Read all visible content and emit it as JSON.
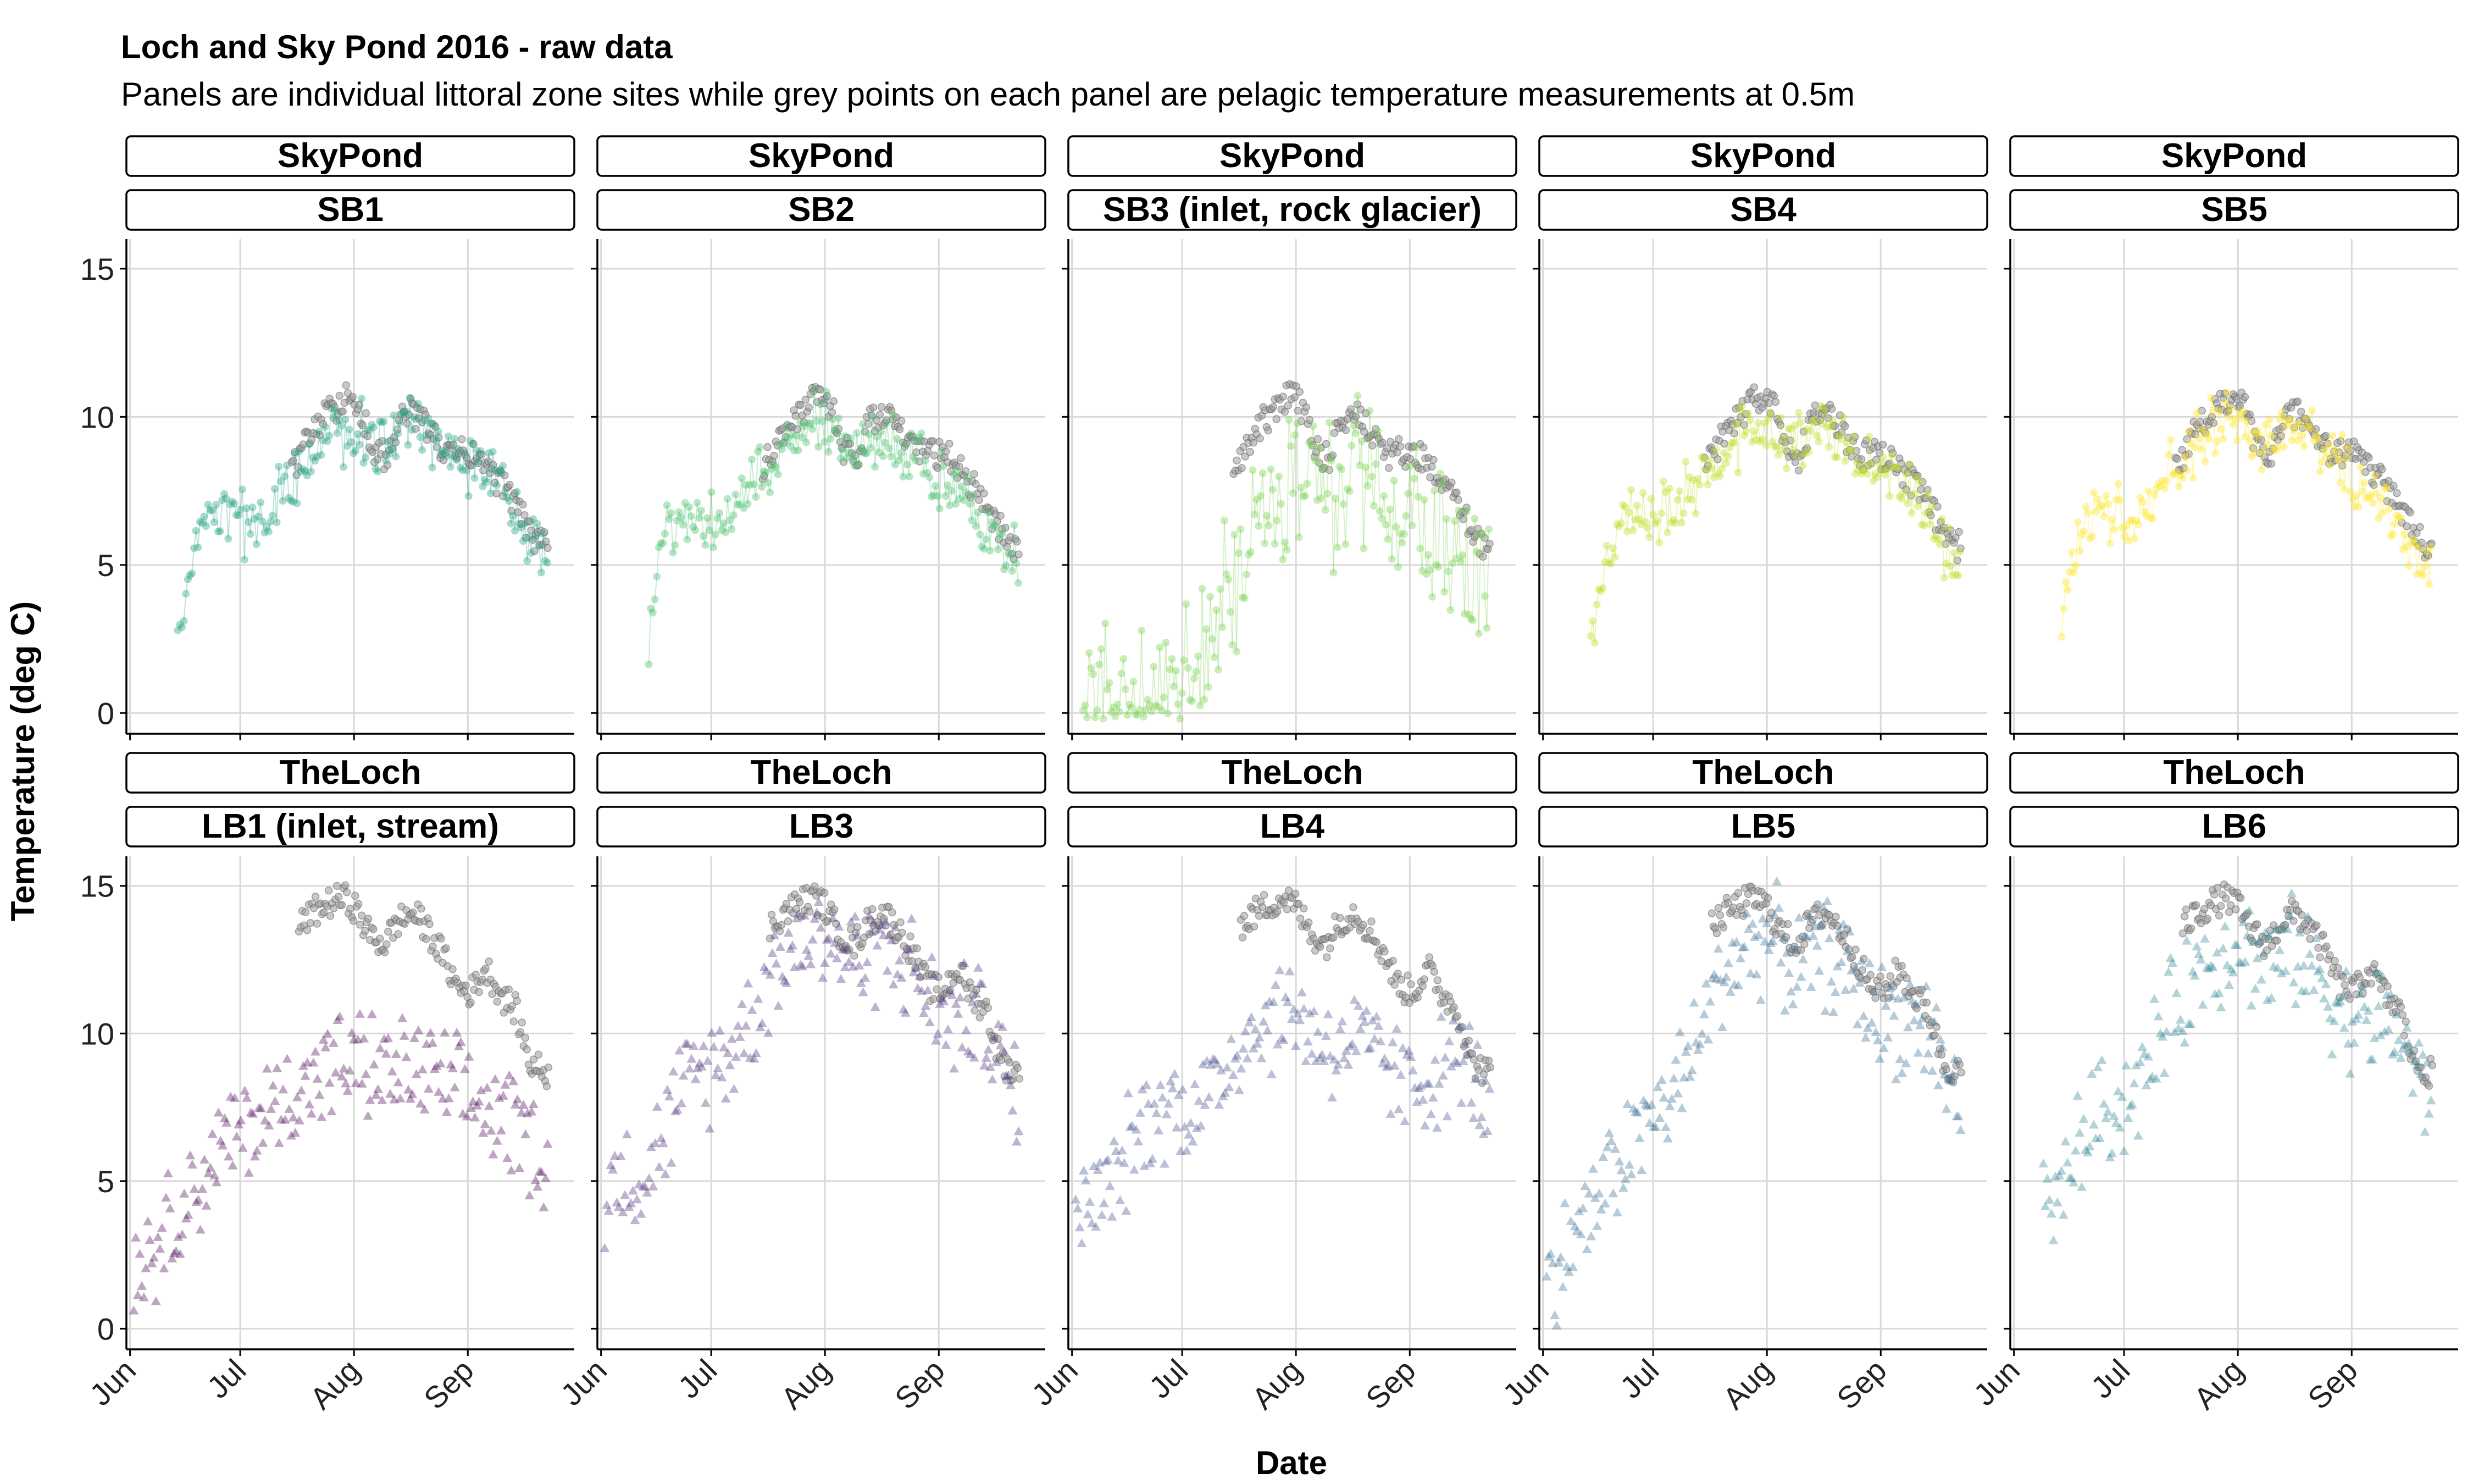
{
  "chart_data": {
    "type": "scatter",
    "title": "Loch and Sky Pond 2016 - raw data",
    "subtitle": "Panels are individual littoral zone sites while grey points on each panel are pelagic temperature measurements at 0.5m",
    "xlabel": "Date",
    "ylabel": "Temperature (deg C)",
    "x_ticks": [
      "Jun",
      "Jul",
      "Aug",
      "Sep"
    ],
    "x_tick_dates": [
      "2016-06-01",
      "2016-07-01",
      "2016-08-01",
      "2016-09-01"
    ],
    "xlim": [
      "2016-05-31",
      "2016-09-30"
    ],
    "y_ticks": [
      0,
      5,
      10,
      15
    ],
    "ylim": [
      -0.7,
      16.0
    ],
    "grid": true,
    "reference_series": {
      "name": "pelagic 0.5m",
      "color": "#7f7f7f",
      "Sky Pond": {
        "dates": [
          "2016-07-15",
          "2016-07-20",
          "2016-07-25",
          "2016-07-31",
          "2016-08-03",
          "2016-08-06",
          "2016-08-10",
          "2016-08-13",
          "2016-08-17",
          "2016-08-21",
          "2016-08-26",
          "2016-08-30",
          "2016-09-04",
          "2016-09-08",
          "2016-09-12",
          "2016-09-16",
          "2016-09-20",
          "2016-09-23"
        ],
        "values": [
          8.2,
          9.4,
          10.1,
          10.8,
          10.2,
          8.9,
          8.6,
          9.8,
          10.2,
          9.6,
          8.7,
          8.8,
          8.6,
          8.0,
          7.4,
          6.6,
          5.7,
          5.6
        ]
      },
      "The Loch": {
        "dates": [
          "2016-07-17",
          "2016-07-21",
          "2016-07-25",
          "2016-07-29",
          "2016-08-01",
          "2016-08-05",
          "2016-08-09",
          "2016-08-13",
          "2016-08-17",
          "2016-08-21",
          "2016-08-25",
          "2016-08-29",
          "2016-09-02",
          "2016-09-06",
          "2016-09-10",
          "2016-09-14",
          "2016-09-18",
          "2016-09-23"
        ],
        "values": [
          13.6,
          14.1,
          14.4,
          14.6,
          14.3,
          13.4,
          13.0,
          13.8,
          14.1,
          13.5,
          12.7,
          11.6,
          11.4,
          12.2,
          11.3,
          10.8,
          9.0,
          8.6
        ]
      }
    },
    "panels": [
      {
        "lake": "SkyPond",
        "site": "SB1",
        "color": "#26a285",
        "marker": "circle",
        "dates": [
          "2016-06-14",
          "2016-06-17",
          "2016-06-22",
          "2016-06-27",
          "2016-07-02",
          "2016-07-07",
          "2016-07-12",
          "2016-07-17",
          "2016-07-22",
          "2016-07-27",
          "2016-08-01",
          "2016-08-06",
          "2016-08-11",
          "2016-08-16",
          "2016-08-21",
          "2016-08-26",
          "2016-08-31",
          "2016-09-05",
          "2016-09-10",
          "2016-09-15",
          "2016-09-20",
          "2016-09-23"
        ],
        "values": [
          2.3,
          4.8,
          6.3,
          6.8,
          6.3,
          6.7,
          7.2,
          8.2,
          8.9,
          9.3,
          9.7,
          9.1,
          9.0,
          9.8,
          9.4,
          8.9,
          8.5,
          8.2,
          7.6,
          6.8,
          5.5,
          5.0
        ]
      },
      {
        "lake": "SkyPond",
        "site": "SB2",
        "color": "#4ac16d",
        "marker": "circle",
        "dates": [
          "2016-06-14",
          "2016-06-17",
          "2016-06-22",
          "2016-06-27",
          "2016-07-02",
          "2016-07-07",
          "2016-07-12",
          "2016-07-17",
          "2016-07-22",
          "2016-07-27",
          "2016-08-01",
          "2016-08-06",
          "2016-08-11",
          "2016-08-16",
          "2016-08-21",
          "2016-08-26",
          "2016-08-31",
          "2016-09-05",
          "2016-09-10",
          "2016-09-15",
          "2016-09-20",
          "2016-09-23"
        ],
        "values": [
          2.2,
          5.8,
          6.4,
          6.6,
          6.4,
          7.0,
          7.7,
          8.4,
          9.1,
          9.6,
          9.7,
          9.0,
          8.8,
          9.4,
          9.0,
          8.6,
          8.0,
          7.6,
          7.0,
          6.3,
          5.5,
          5.0
        ]
      },
      {
        "lake": "SkyPond",
        "site": "SB3 (inlet, rock glacier)",
        "color": "#7ad151",
        "marker": "circle",
        "dates": [
          "2016-06-04",
          "2016-06-09",
          "2016-06-14",
          "2016-06-19",
          "2016-06-24",
          "2016-06-29",
          "2016-07-04",
          "2016-07-09",
          "2016-07-14",
          "2016-07-19",
          "2016-07-24",
          "2016-07-29",
          "2016-08-03",
          "2016-08-08",
          "2016-08-13",
          "2016-08-18",
          "2016-08-23",
          "2016-08-28",
          "2016-09-02",
          "2016-09-07",
          "2016-09-12",
          "2016-09-17",
          "2016-09-23"
        ],
        "values": [
          0.3,
          0.5,
          0.6,
          0.6,
          0.8,
          0.7,
          1.1,
          2.8,
          4.3,
          5.7,
          6.9,
          7.8,
          8.2,
          7.6,
          7.3,
          8.0,
          7.8,
          7.6,
          7.1,
          6.6,
          5.8,
          5.0,
          4.5
        ]
      },
      {
        "lake": "SkyPond",
        "site": "SB4",
        "color": "#bddf26",
        "marker": "circle",
        "dates": [
          "2016-06-14",
          "2016-06-17",
          "2016-06-22",
          "2016-06-27",
          "2016-07-02",
          "2016-07-07",
          "2016-07-12",
          "2016-07-17",
          "2016-07-22",
          "2016-07-27",
          "2016-08-01",
          "2016-08-06",
          "2016-08-11",
          "2016-08-16",
          "2016-08-21",
          "2016-08-26",
          "2016-08-31",
          "2016-09-05",
          "2016-09-10",
          "2016-09-15",
          "2016-09-20",
          "2016-09-23"
        ],
        "values": [
          2.2,
          5.0,
          6.5,
          7.0,
          6.6,
          7.0,
          7.6,
          8.3,
          9.0,
          9.5,
          10.0,
          9.2,
          8.9,
          9.6,
          9.2,
          8.8,
          8.3,
          7.9,
          7.2,
          6.4,
          5.3,
          5.1
        ]
      },
      {
        "lake": "SkyPond",
        "site": "SB5",
        "color": "#fde725",
        "marker": "circle",
        "dates": [
          "2016-06-14",
          "2016-06-17",
          "2016-06-22",
          "2016-06-27",
          "2016-07-02",
          "2016-07-07",
          "2016-07-12",
          "2016-07-17",
          "2016-07-22",
          "2016-07-27",
          "2016-08-01",
          "2016-08-06",
          "2016-08-11",
          "2016-08-16",
          "2016-08-21",
          "2016-08-26",
          "2016-08-31",
          "2016-09-05",
          "2016-09-10",
          "2016-09-15",
          "2016-09-20",
          "2016-09-23"
        ],
        "values": [
          3.0,
          5.6,
          6.5,
          6.8,
          6.7,
          7.2,
          7.8,
          8.5,
          9.2,
          9.6,
          10.0,
          9.3,
          9.0,
          9.7,
          9.3,
          8.7,
          8.1,
          7.7,
          7.0,
          6.0,
          4.8,
          5.2
        ]
      },
      {
        "lake": "TheLoch",
        "site": "LB1 (inlet, stream)",
        "color": "#440154",
        "marker": "triangle",
        "dates": [
          "2016-06-02",
          "2016-06-07",
          "2016-06-12",
          "2016-06-17",
          "2016-06-22",
          "2016-06-27",
          "2016-07-02",
          "2016-07-07",
          "2016-07-12",
          "2016-07-17",
          "2016-07-22",
          "2016-07-27",
          "2016-08-01",
          "2016-08-06",
          "2016-08-11",
          "2016-08-16",
          "2016-08-21",
          "2016-08-26",
          "2016-08-31",
          "2016-09-05",
          "2016-09-10",
          "2016-09-15",
          "2016-09-20",
          "2016-09-23"
        ],
        "values": [
          1.8,
          2.8,
          3.6,
          4.5,
          5.4,
          6.2,
          6.8,
          7.2,
          7.6,
          8.2,
          8.6,
          8.9,
          9.0,
          8.8,
          8.6,
          8.8,
          8.6,
          8.2,
          7.8,
          7.6,
          7.2,
          6.8,
          6.2,
          5.0
        ]
      },
      {
        "lake": "TheLoch",
        "site": "LB3",
        "color": "#482878",
        "marker": "triangle",
        "dates": [
          "2016-06-02",
          "2016-06-07",
          "2016-06-12",
          "2016-06-17",
          "2016-06-22",
          "2016-06-27",
          "2016-07-02",
          "2016-07-07",
          "2016-07-12",
          "2016-07-17",
          "2016-07-22",
          "2016-07-27",
          "2016-08-01",
          "2016-08-06",
          "2016-08-11",
          "2016-08-16",
          "2016-08-21",
          "2016-08-26",
          "2016-08-31",
          "2016-09-05",
          "2016-09-10",
          "2016-09-15",
          "2016-09-20",
          "2016-09-23"
        ],
        "values": [
          4.8,
          5.3,
          5.2,
          6.2,
          7.8,
          8.6,
          8.9,
          9.6,
          10.6,
          12.0,
          12.8,
          13.3,
          13.5,
          12.8,
          12.4,
          13.0,
          12.6,
          11.9,
          10.8,
          10.4,
          10.7,
          10.0,
          8.4,
          7.6
        ]
      },
      {
        "lake": "TheLoch",
        "site": "LB4",
        "color": "#3e4a89",
        "marker": "triangle",
        "dates": [
          "2016-06-02",
          "2016-06-07",
          "2016-06-12",
          "2016-06-17",
          "2016-06-22",
          "2016-06-27",
          "2016-07-02",
          "2016-07-07",
          "2016-07-12",
          "2016-07-17",
          "2016-07-22",
          "2016-07-27",
          "2016-08-01",
          "2016-08-06",
          "2016-08-11",
          "2016-08-16",
          "2016-08-21",
          "2016-08-26",
          "2016-08-31",
          "2016-09-05",
          "2016-09-10",
          "2016-09-15",
          "2016-09-20",
          "2016-09-23"
        ],
        "values": [
          3.8,
          4.4,
          4.8,
          6.2,
          7.2,
          7.6,
          7.4,
          7.8,
          8.6,
          9.8,
          10.2,
          10.6,
          10.8,
          10.0,
          9.4,
          9.8,
          9.4,
          9.0,
          8.2,
          8.4,
          8.8,
          9.2,
          8.0,
          7.2
        ]
      },
      {
        "lake": "TheLoch",
        "site": "LB5",
        "color": "#31688e",
        "marker": "triangle",
        "dates": [
          "2016-06-02",
          "2016-06-07",
          "2016-06-12",
          "2016-06-17",
          "2016-06-22",
          "2016-06-27",
          "2016-07-02",
          "2016-07-07",
          "2016-07-12",
          "2016-07-17",
          "2016-07-22",
          "2016-07-27",
          "2016-08-01",
          "2016-08-06",
          "2016-08-11",
          "2016-08-16",
          "2016-08-21",
          "2016-08-26",
          "2016-08-31",
          "2016-09-05",
          "2016-09-10",
          "2016-09-15",
          "2016-09-20",
          "2016-09-23"
        ],
        "values": [
          1.5,
          2.6,
          3.6,
          4.6,
          5.8,
          6.6,
          7.3,
          8.0,
          9.4,
          11.2,
          12.4,
          13.0,
          13.3,
          12.7,
          12.2,
          12.8,
          12.4,
          11.6,
          10.6,
          10.4,
          10.6,
          9.9,
          8.2,
          7.6
        ]
      },
      {
        "lake": "TheLoch",
        "site": "LB6",
        "color": "#26828e",
        "marker": "triangle",
        "dates": [
          "2016-06-09",
          "2016-06-13",
          "2016-06-17",
          "2016-06-22",
          "2016-06-27",
          "2016-07-02",
          "2016-07-07",
          "2016-07-12",
          "2016-07-17",
          "2016-07-22",
          "2016-07-27",
          "2016-08-01",
          "2016-08-06",
          "2016-08-11",
          "2016-08-16",
          "2016-08-21",
          "2016-08-26",
          "2016-08-31",
          "2016-09-05",
          "2016-09-10",
          "2016-09-15",
          "2016-09-20",
          "2016-09-23"
        ],
        "values": [
          4.8,
          4.2,
          5.8,
          7.2,
          7.4,
          7.8,
          8.6,
          10.2,
          11.4,
          12.2,
          12.8,
          13.2,
          12.6,
          12.2,
          12.8,
          12.3,
          11.5,
          10.5,
          10.3,
          10.6,
          9.8,
          8.2,
          7.8
        ]
      }
    ]
  }
}
